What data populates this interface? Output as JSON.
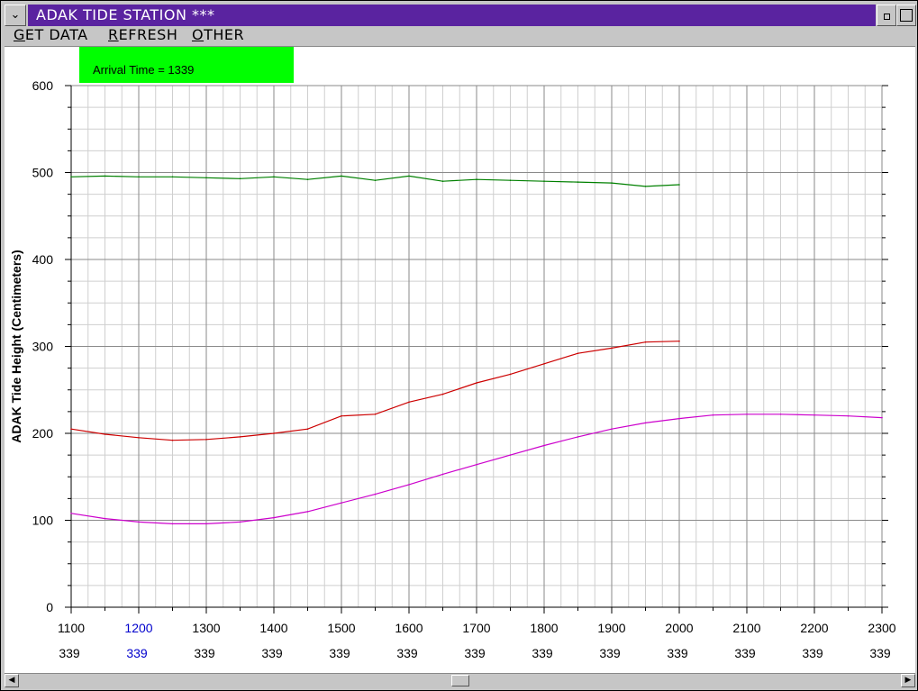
{
  "window": {
    "title": "ADAK TIDE STATION ***",
    "system_menu_glyph": "⌄",
    "title_bar_color": "#5a23a0"
  },
  "menu": {
    "items": [
      {
        "hotkey": "G",
        "rest": "ET DATA"
      },
      {
        "hotkey": "R",
        "rest": "EFRESH"
      },
      {
        "hotkey": "O",
        "rest": "THER"
      }
    ]
  },
  "arrival_box": {
    "text": "Arrival Time = 1339",
    "color": "#00ff00"
  },
  "chart_data": {
    "type": "line",
    "ylabel": "ADAK Tide Height (Centimeters)",
    "xlim": [
      1100,
      2300
    ],
    "ylim": [
      0,
      600
    ],
    "y_ticks": [
      0,
      100,
      200,
      300,
      400,
      500,
      600
    ],
    "x_ticks": [
      1100,
      1200,
      1300,
      1400,
      1500,
      1600,
      1700,
      1800,
      1900,
      2000,
      2100,
      2200,
      2300
    ],
    "x_tick_labels": [
      "1100",
      "1200",
      "1300",
      "1400",
      "1500",
      "1600",
      "1700",
      "1800",
      "1900",
      "2000",
      "2100",
      "2200",
      "2300"
    ],
    "x_tick_sublabels": [
      "339",
      "339",
      "339",
      "339",
      "339",
      "339",
      "339",
      "339",
      "339",
      "339",
      "339",
      "339",
      "339"
    ],
    "highlighted_tick": "1200",
    "highlight_color": "#0000cc",
    "grid": true,
    "series": [
      {
        "color": "#008000",
        "x": [
          1100,
          1150,
          1200,
          1250,
          1300,
          1350,
          1400,
          1450,
          1500,
          1550,
          1600,
          1650,
          1700,
          1750,
          1800,
          1850,
          1900,
          1950,
          2000
        ],
        "values": [
          495,
          496,
          495,
          495,
          494,
          493,
          495,
          492,
          496,
          491,
          496,
          490,
          492,
          491,
          490,
          489,
          488,
          484,
          486
        ]
      },
      {
        "color": "#cc0000",
        "x": [
          1100,
          1150,
          1200,
          1250,
          1300,
          1350,
          1400,
          1450,
          1500,
          1550,
          1600,
          1650,
          1700,
          1750,
          1800,
          1850,
          1900,
          1950,
          2000
        ],
        "values": [
          205,
          199,
          195,
          192,
          193,
          196,
          200,
          205,
          220,
          222,
          236,
          245,
          258,
          268,
          280,
          292,
          298,
          305,
          306
        ]
      },
      {
        "color": "#cc00cc",
        "x": [
          1100,
          1150,
          1200,
          1250,
          1300,
          1350,
          1400,
          1450,
          1500,
          1550,
          1600,
          1650,
          1700,
          1750,
          1800,
          1850,
          1900,
          1950,
          2000,
          2050,
          2100,
          2150,
          2200,
          2250,
          2300
        ],
        "values": [
          108,
          102,
          98,
          96,
          96,
          98,
          103,
          110,
          120,
          130,
          141,
          153,
          164,
          175,
          186,
          196,
          205,
          212,
          217,
          221,
          222,
          222,
          221,
          220,
          218
        ]
      }
    ]
  }
}
